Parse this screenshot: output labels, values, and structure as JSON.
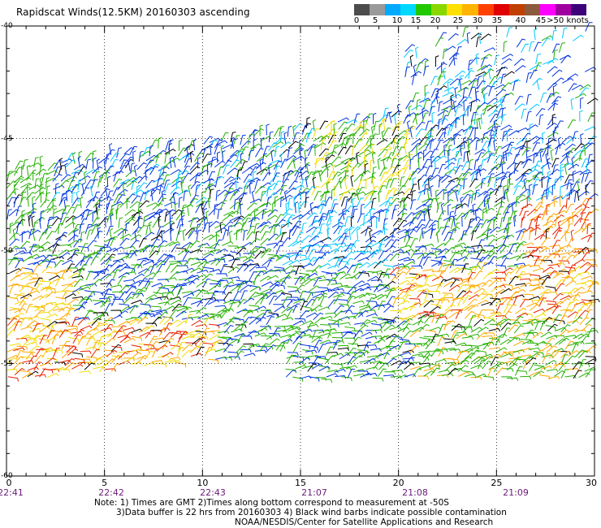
{
  "title": "Rapidscat Winds(12.5KM) 20160303 ascending",
  "scale": {
    "colors": [
      "#4c4c4c",
      "#9a9a9a",
      "#00aaff",
      "#00d8ff",
      "#22c800",
      "#88d800",
      "#ffe000",
      "#ffb400",
      "#ff4000",
      "#e00000",
      "#c04000",
      "#8c5a3c",
      "#ff00ff",
      "#a000a0",
      "#3c0078"
    ],
    "labels": [
      "0",
      "5",
      "10",
      "15",
      "20",
      "25",
      "30",
      "35",
      "40",
      "45",
      ">50 knots"
    ]
  },
  "axes": {
    "x_ticks": [
      "0",
      "5",
      "10",
      "15",
      "20",
      "25",
      "30"
    ],
    "time_labels": [
      "22:41",
      "22:42",
      "22:43",
      "21:07",
      "21:08",
      "21:09"
    ],
    "y_ticks": [
      "-40",
      "-45",
      "-50",
      "-55",
      "-60"
    ]
  },
  "notes": {
    "line1": "Note: 1) Times are GMT 2)Times along bottom correspond to measurement at -50S",
    "line2": "3)Data buffer is 22 hrs from 20160303 4) Black wind barbs indicate possible contamination",
    "line3": "NOAA/NESDIS/Center for Satellite Applications and Research"
  },
  "map_data": {
    "region": "longitude 0 to 30, latitude -40 to -60",
    "swath_note": "wind barb field covering roughly -42 to -58 latitude"
  }
}
